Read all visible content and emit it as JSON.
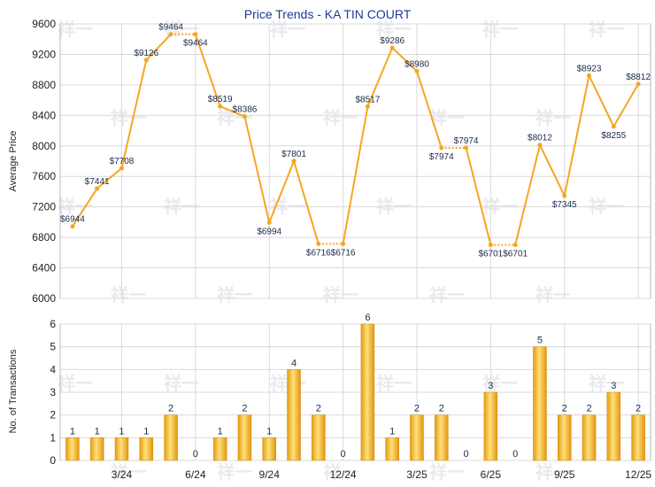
{
  "chart_data": [
    {
      "type": "line",
      "title": "Price Trends - KA TIN COURT",
      "ylabel": "Average Price",
      "ylim": [
        6000,
        9600
      ],
      "yticks": [
        "6000",
        "6400",
        "6800",
        "7200",
        "7600",
        "8000",
        "8400",
        "8800",
        "9200",
        "9600"
      ],
      "grid": true,
      "line_color": "#f5a623",
      "series": [
        {
          "values": [
            6944,
            7441,
            7708,
            9126,
            9464,
            9464,
            8519,
            8386,
            6994,
            7801,
            6716,
            6716,
            8517,
            9286,
            8980,
            7974,
            7974,
            6701,
            6701,
            8012,
            7345,
            8923,
            8255,
            8812
          ],
          "labels": [
            "$6944",
            "$7441",
            "$7708",
            "$9126",
            "$9464",
            "$9464",
            "$8519",
            "$8386",
            "$6994",
            "$7801",
            "$6716",
            "$6716",
            "$8517",
            "$9286",
            "$8980",
            "$7974",
            "$7974",
            "$6701",
            "$6701",
            "$8012",
            "$7345",
            "$8923",
            "$8255",
            "$8812"
          ]
        }
      ]
    },
    {
      "type": "bar",
      "ylabel": "No. of Transactions",
      "ylim": [
        0,
        6
      ],
      "yticks": [
        "0",
        "1",
        "2",
        "3",
        "4",
        "5",
        "6"
      ],
      "xticks": [
        {
          "label": "3/24",
          "index": 2.5
        },
        {
          "label": "6/24",
          "index": 5.5
        },
        {
          "label": "9/24",
          "index": 8.5
        },
        {
          "label": "12/24",
          "index": 11.5
        },
        {
          "label": "3/25",
          "index": 14.5
        },
        {
          "label": "6/25",
          "index": 17.5
        },
        {
          "label": "9/25",
          "index": 20.5
        },
        {
          "label": "12/25",
          "index": 23.5
        }
      ],
      "bar_color": "#f0a81e",
      "values": [
        1,
        1,
        1,
        1,
        2,
        0,
        1,
        2,
        1,
        4,
        2,
        0,
        6,
        1,
        2,
        2,
        0,
        3,
        0,
        5,
        2,
        2,
        3,
        2
      ]
    }
  ]
}
